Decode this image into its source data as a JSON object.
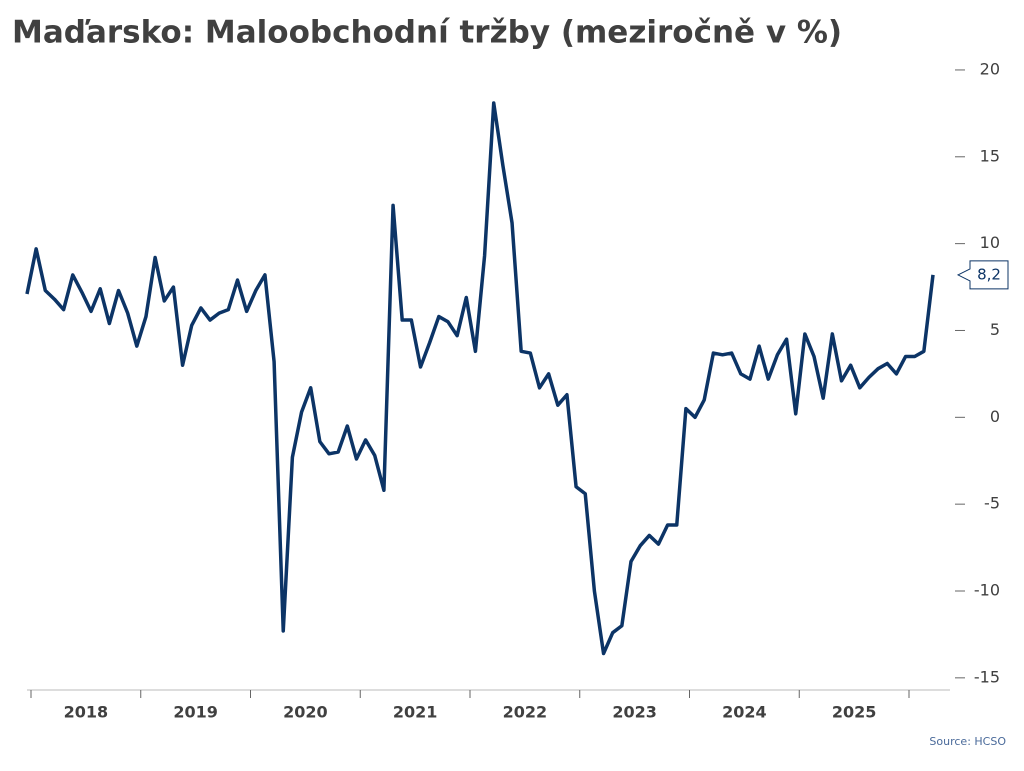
{
  "chart_data": {
    "type": "line",
    "title": "Maďarsko: Maloobchodní tržby (meziročně v %)",
    "source": "Source: HCSO",
    "year_labels": [
      "2018",
      "2019",
      "2020",
      "2021",
      "2022",
      "2023",
      "2024",
      "2025"
    ],
    "series": [
      {
        "color": "#0c3466",
        "values": [
          7.1,
          9.7,
          7.3,
          6.8,
          6.2,
          8.2,
          7.2,
          6.1,
          7.4,
          5.4,
          7.3,
          6.0,
          4.1,
          5.8,
          9.2,
          6.7,
          7.5,
          3.0,
          5.3,
          6.3,
          5.6,
          6.0,
          6.2,
          7.9,
          6.1,
          7.3,
          8.2,
          3.2,
          -12.3,
          -2.3,
          0.3,
          1.7,
          -1.4,
          -2.1,
          -2.0,
          -0.5,
          -2.4,
          -1.3,
          -2.2,
          -4.2,
          12.2,
          5.6,
          5.6,
          2.9,
          4.3,
          5.8,
          5.5,
          4.7,
          6.9,
          3.8,
          9.3,
          18.1,
          14.5,
          11.2,
          3.8,
          3.7,
          1.7,
          2.5,
          0.7,
          1.3,
          -4.0,
          -4.4,
          -10.0,
          -13.6,
          -12.4,
          -12.0,
          -8.3,
          -7.4,
          -6.8,
          -7.3,
          -6.2,
          -6.2,
          0.5,
          0,
          1.0,
          3.7,
          3.6,
          3.7,
          2.5,
          2.2,
          4.1,
          2.2,
          3.6,
          4.5,
          0.2,
          4.8,
          3.5,
          1.1,
          4.8,
          2.1,
          3.0,
          1.7,
          2.3,
          2.8,
          3.1,
          2.5,
          3.5,
          3.5,
          3.8,
          8.2
        ],
        "value_labels": [
          null,
          null,
          null,
          null,
          null,
          null,
          null,
          null,
          null,
          null,
          null,
          null,
          null,
          null,
          null,
          null,
          null,
          null,
          null,
          null,
          null,
          null,
          null,
          null,
          null,
          null,
          null,
          null,
          null,
          null,
          null,
          null,
          null,
          null,
          null,
          null,
          null,
          null,
          null,
          null,
          null,
          null,
          null,
          null,
          null,
          null,
          null,
          null,
          null,
          null,
          null,
          null,
          null,
          null,
          null,
          null,
          null,
          null,
          null,
          null,
          null,
          null,
          null,
          null,
          null,
          null,
          null,
          null,
          null,
          null,
          null,
          null,
          null,
          null,
          null,
          null,
          null,
          null,
          null,
          null,
          null,
          null,
          null,
          null,
          null,
          null,
          null,
          null,
          null,
          null,
          null,
          null,
          null,
          null,
          null,
          null,
          null,
          null,
          null,
          "8,2"
        ]
      }
    ],
    "ylim": [
      -15.7,
      20.4
    ],
    "yticks": [
      20,
      15,
      10,
      5,
      0,
      -5,
      -10,
      -15
    ]
  }
}
